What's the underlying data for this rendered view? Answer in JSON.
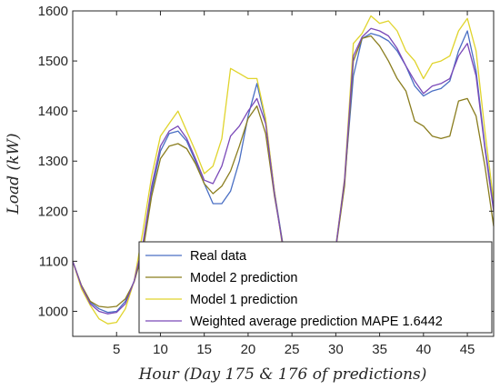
{
  "chart_data": {
    "type": "line",
    "xlabel": "Hour (Day 175 & 176 of predictions)",
    "ylabel": "Load (kW)",
    "xlim": [
      0,
      48
    ],
    "ylim": [
      950,
      1600
    ],
    "xticks": [
      5,
      10,
      15,
      20,
      25,
      30,
      35,
      40,
      45
    ],
    "yticks": [
      1000,
      1100,
      1200,
      1300,
      1400,
      1500,
      1600
    ],
    "grid": false,
    "legend_position": "bottom-right",
    "x": [
      0,
      1,
      2,
      3,
      4,
      5,
      6,
      7,
      8,
      9,
      10,
      11,
      12,
      13,
      14,
      15,
      16,
      17,
      18,
      19,
      20,
      21,
      22,
      23,
      24,
      25,
      26,
      27,
      28,
      29,
      30,
      31,
      32,
      33,
      34,
      35,
      36,
      37,
      38,
      39,
      40,
      41,
      42,
      43,
      44,
      45,
      46,
      47,
      48
    ],
    "series": [
      {
        "name": "Real data",
        "color": "#4a6fc4",
        "values": [
          1100,
          1050,
          1018,
          1005,
          998,
          1000,
          1020,
          1060,
          1130,
          1240,
          1320,
          1355,
          1360,
          1340,
          1300,
          1255,
          1215,
          1215,
          1240,
          1300,
          1390,
          1455,
          1380,
          1240,
          1130,
          null,
          null,
          null,
          null,
          null,
          1130,
          1260,
          1470,
          1545,
          1555,
          1550,
          1540,
          1520,
          1490,
          1450,
          1430,
          1440,
          1445,
          1460,
          1520,
          1560,
          1480,
          1330,
          1210
        ]
      },
      {
        "name": "Model 2 prediction",
        "color": "#8a7d1e",
        "values": [
          1100,
          1052,
          1020,
          1010,
          1008,
          1010,
          1025,
          1058,
          1120,
          1230,
          1305,
          1330,
          1335,
          1325,
          1295,
          1255,
          1235,
          1250,
          1280,
          1330,
          1385,
          1410,
          1355,
          1230,
          1130,
          null,
          null,
          null,
          null,
          null,
          1125,
          1250,
          1500,
          1545,
          1550,
          1530,
          1500,
          1465,
          1440,
          1380,
          1370,
          1350,
          1345,
          1350,
          1420,
          1425,
          1390,
          1290,
          1170
        ]
      },
      {
        "name": "Model 1 prediction",
        "color": "#e0d42c",
        "values": [
          1100,
          1045,
          1012,
          985,
          975,
          978,
          1005,
          1060,
          1160,
          1270,
          1350,
          1375,
          1400,
          1360,
          1320,
          1275,
          1290,
          1345,
          1485,
          1475,
          1465,
          1465,
          1385,
          1240,
          1120,
          null,
          null,
          null,
          null,
          null,
          1130,
          1265,
          1535,
          1555,
          1590,
          1575,
          1580,
          1560,
          1520,
          1500,
          1465,
          1495,
          1500,
          1510,
          1560,
          1585,
          1520,
          1360,
          1220
        ]
      },
      {
        "name": "Weighted average prediction MAPE 1.6442",
        "color": "#7a49b8",
        "values": [
          1100,
          1050,
          1015,
          1000,
          995,
          998,
          1015,
          1060,
          1135,
          1250,
          1330,
          1360,
          1370,
          1345,
          1305,
          1262,
          1255,
          1290,
          1350,
          1370,
          1400,
          1425,
          1375,
          1235,
          1125,
          null,
          null,
          null,
          null,
          null,
          1128,
          1262,
          1510,
          1548,
          1565,
          1560,
          1550,
          1525,
          1490,
          1460,
          1435,
          1450,
          1455,
          1465,
          1510,
          1535,
          1470,
          1325,
          1200
        ]
      }
    ]
  }
}
